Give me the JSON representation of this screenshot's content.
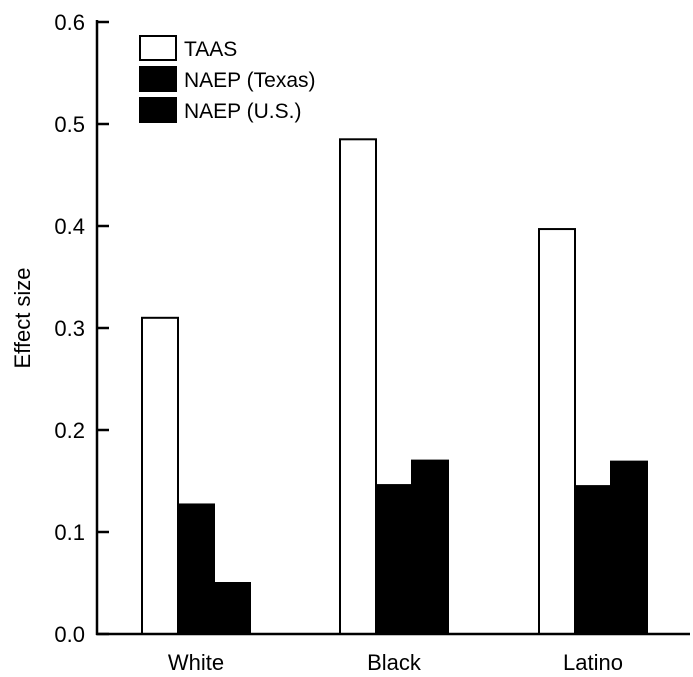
{
  "chart_data": {
    "type": "bar",
    "title": "",
    "xlabel": "",
    "ylabel": "Effect size",
    "ylim": [
      0.0,
      0.6
    ],
    "yticks": [
      "0.0",
      "0.1",
      "0.2",
      "0.3",
      "0.4",
      "0.5",
      "0.6"
    ],
    "categories": [
      "White",
      "Black",
      "Latino"
    ],
    "series": [
      {
        "name": "TAAS",
        "values": [
          0.31,
          0.485,
          0.397
        ],
        "color": "#ffffff"
      },
      {
        "name": "NAEP (Texas)",
        "values": [
          0.127,
          0.146,
          0.145
        ],
        "color": "#000000"
      },
      {
        "name": "NAEP (U.S.)",
        "values": [
          0.05,
          0.17,
          0.169
        ],
        "color": "#000000"
      }
    ],
    "legend": "top-left",
    "grid": false
  }
}
